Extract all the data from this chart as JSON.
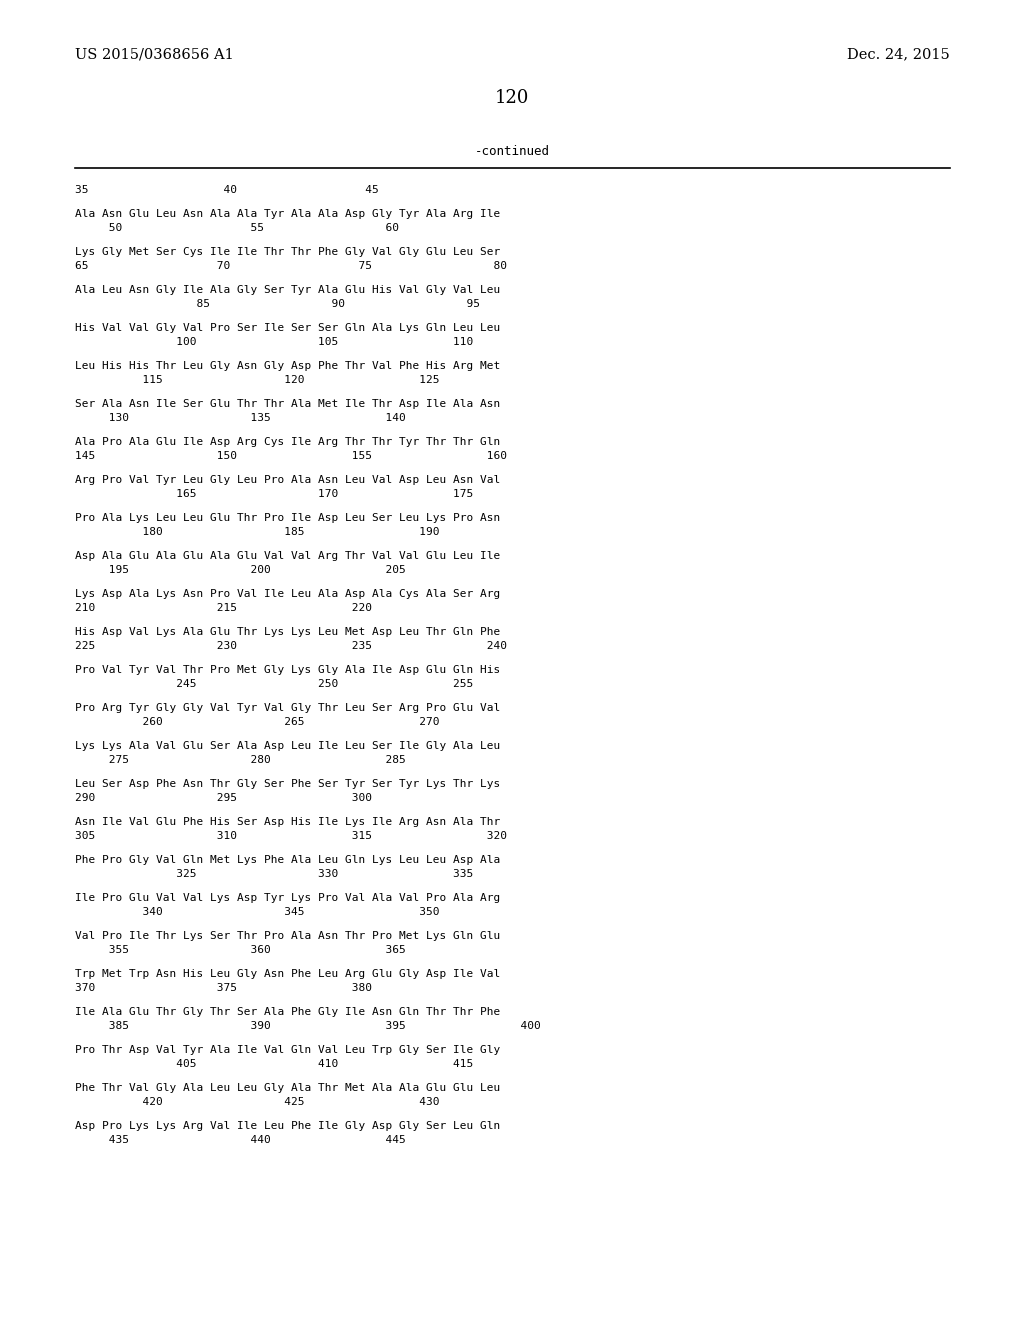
{
  "header_left": "US 2015/0368656 A1",
  "header_right": "Dec. 24, 2015",
  "page_number": "120",
  "continued_label": "-continued",
  "all_lines": [
    [
      "35                    40                   45",
      false
    ],
    [
      "Ala Asn Glu Leu Asn Ala Ala Tyr Ala Ala Asp Gly Tyr Ala Arg Ile",
      true
    ],
    [
      "     50                   55                  60",
      false
    ],
    [
      "Lys Gly Met Ser Cys Ile Ile Thr Thr Phe Gly Val Gly Glu Leu Ser",
      true
    ],
    [
      "65                   70                   75                  80",
      false
    ],
    [
      "Ala Leu Asn Gly Ile Ala Gly Ser Tyr Ala Glu His Val Gly Val Leu",
      true
    ],
    [
      "                  85                  90                  95",
      false
    ],
    [
      "His Val Val Gly Val Pro Ser Ile Ser Ser Gln Ala Lys Gln Leu Leu",
      true
    ],
    [
      "               100                  105                 110",
      false
    ],
    [
      "Leu His His Thr Leu Gly Asn Gly Asp Phe Thr Val Phe His Arg Met",
      true
    ],
    [
      "          115                  120                 125",
      false
    ],
    [
      "Ser Ala Asn Ile Ser Glu Thr Thr Ala Met Ile Thr Asp Ile Ala Asn",
      true
    ],
    [
      "     130                  135                 140",
      false
    ],
    [
      "Ala Pro Ala Glu Ile Asp Arg Cys Ile Arg Thr Thr Tyr Thr Thr Gln",
      true
    ],
    [
      "145                  150                 155                 160",
      false
    ],
    [
      "Arg Pro Val Tyr Leu Gly Leu Pro Ala Asn Leu Val Asp Leu Asn Val",
      true
    ],
    [
      "               165                  170                 175",
      false
    ],
    [
      "Pro Ala Lys Leu Leu Glu Thr Pro Ile Asp Leu Ser Leu Lys Pro Asn",
      true
    ],
    [
      "          180                  185                 190",
      false
    ],
    [
      "Asp Ala Glu Ala Glu Ala Glu Val Val Arg Thr Val Val Glu Leu Ile",
      true
    ],
    [
      "     195                  200                 205",
      false
    ],
    [
      "Lys Asp Ala Lys Asn Pro Val Ile Leu Ala Asp Ala Cys Ala Ser Arg",
      true
    ],
    [
      "210                  215                 220",
      false
    ],
    [
      "His Asp Val Lys Ala Glu Thr Lys Lys Leu Met Asp Leu Thr Gln Phe",
      true
    ],
    [
      "225                  230                 235                 240",
      false
    ],
    [
      "Pro Val Tyr Val Thr Pro Met Gly Lys Gly Ala Ile Asp Glu Gln His",
      true
    ],
    [
      "               245                  250                 255",
      false
    ],
    [
      "Pro Arg Tyr Gly Gly Val Tyr Val Gly Thr Leu Ser Arg Pro Glu Val",
      true
    ],
    [
      "          260                  265                 270",
      false
    ],
    [
      "Lys Lys Ala Val Glu Ser Ala Asp Leu Ile Leu Ser Ile Gly Ala Leu",
      true
    ],
    [
      "     275                  280                 285",
      false
    ],
    [
      "Leu Ser Asp Phe Asn Thr Gly Ser Phe Ser Tyr Ser Tyr Lys Thr Lys",
      true
    ],
    [
      "290                  295                 300",
      false
    ],
    [
      "Asn Ile Val Glu Phe His Ser Asp His Ile Lys Ile Arg Asn Ala Thr",
      true
    ],
    [
      "305                  310                 315                 320",
      false
    ],
    [
      "Phe Pro Gly Val Gln Met Lys Phe Ala Leu Gln Lys Leu Leu Asp Ala",
      true
    ],
    [
      "               325                  330                 335",
      false
    ],
    [
      "Ile Pro Glu Val Val Lys Asp Tyr Lys Pro Val Ala Val Pro Ala Arg",
      true
    ],
    [
      "          340                  345                 350",
      false
    ],
    [
      "Val Pro Ile Thr Lys Ser Thr Pro Ala Asn Thr Pro Met Lys Gln Glu",
      true
    ],
    [
      "     355                  360                 365",
      false
    ],
    [
      "Trp Met Trp Asn His Leu Gly Asn Phe Leu Arg Glu Gly Asp Ile Val",
      true
    ],
    [
      "370                  375                 380",
      false
    ],
    [
      "Ile Ala Glu Thr Gly Thr Ser Ala Phe Gly Ile Asn Gln Thr Thr Phe",
      true
    ],
    [
      "     385                  390                 395                 400",
      false
    ],
    [
      "Pro Thr Asp Val Tyr Ala Ile Val Gln Val Leu Trp Gly Ser Ile Gly",
      true
    ],
    [
      "               405                  410                 415",
      false
    ],
    [
      "Phe Thr Val Gly Ala Leu Leu Gly Ala Thr Met Ala Ala Glu Glu Leu",
      true
    ],
    [
      "          420                  425                 430",
      false
    ],
    [
      "Asp Pro Lys Lys Arg Val Ile Leu Phe Ile Gly Asp Gly Ser Leu Gln",
      true
    ],
    [
      "     435                  440                 445",
      false
    ]
  ]
}
